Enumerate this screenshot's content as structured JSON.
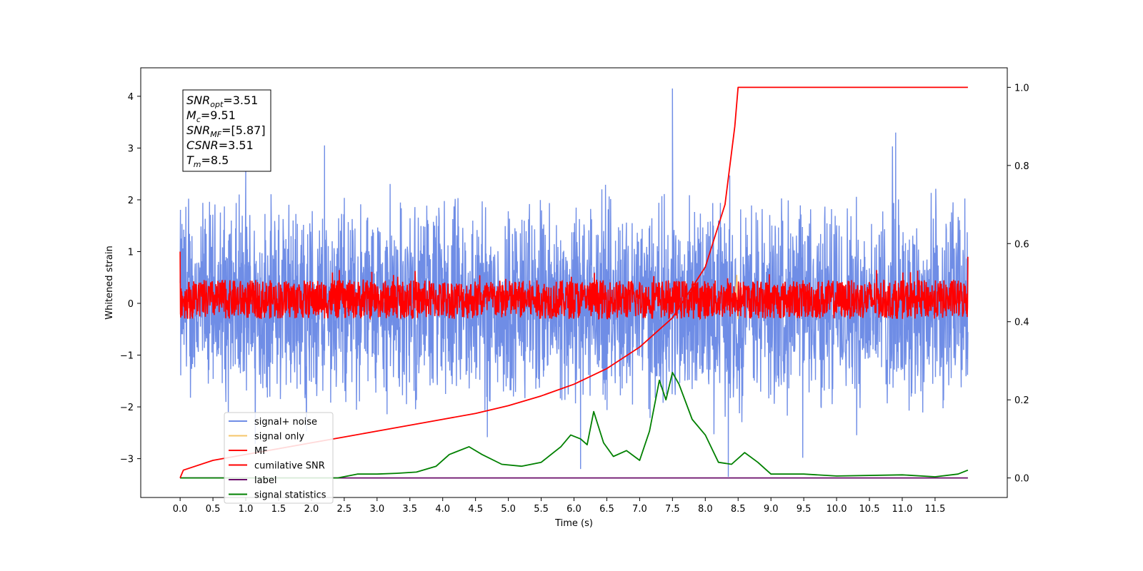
{
  "chart_data": {
    "type": "line",
    "xlabel": "Time (s)",
    "ylabel": "Whitened strain",
    "xlim": [
      -0.6,
      12.6
    ],
    "ylim": [
      -3.75,
      4.55
    ],
    "y2lim": [
      -0.05,
      1.05
    ],
    "xticks": [
      "0.0",
      "0.5",
      "1.0",
      "1.5",
      "2.0",
      "2.5",
      "3.0",
      "3.5",
      "4.0",
      "4.5",
      "5.0",
      "5.5",
      "6.0",
      "6.5",
      "7.0",
      "7.5",
      "8.0",
      "8.5",
      "9.0",
      "9.5",
      "10.0",
      "10.5",
      "11.0",
      "11.5"
    ],
    "yticks": [
      "4",
      "3",
      "2",
      "1",
      "0",
      "−1",
      "−2",
      "−3"
    ],
    "y2ticks": [
      "1.0",
      "0.8",
      "0.6",
      "0.4",
      "0.2",
      "0.0"
    ],
    "annotation": {
      "lines": [
        {
          "sym": "SNR",
          "sub": "opt",
          "val": "=3.51"
        },
        {
          "sym": "M",
          "sub": "c",
          "val": "=9.51"
        },
        {
          "sym": "SNR",
          "sub": "MF",
          "val": "=[5.87]"
        },
        {
          "sym": "CSNR",
          "sub": "",
          "val": "=3.51"
        },
        {
          "sym": "T",
          "sub": "m",
          "val": "=8.5"
        }
      ]
    },
    "series": [
      {
        "name": "signal+ noise",
        "axis": "left",
        "color": "#6f8de6",
        "band": [
          -2.5,
          2.5
        ],
        "spikes": [
          [
            7.5,
            4.15
          ],
          [
            8.35,
            -3.35
          ],
          [
            10.9,
            3.3
          ],
          [
            2.2,
            3.05
          ],
          [
            1.0,
            2.6
          ],
          [
            6.1,
            -3.2
          ]
        ]
      },
      {
        "name": "signal only",
        "axis": "left",
        "color": "#f5c56a",
        "points": [
          [
            8.45,
            0.0
          ],
          [
            8.48,
            0.55
          ],
          [
            8.5,
            -0.3
          ],
          [
            8.52,
            0.0
          ]
        ]
      },
      {
        "name": "MF",
        "axis": "left",
        "color": "#ff0000",
        "band": [
          -0.3,
          0.45
        ],
        "edges": [
          [
            0.0,
            1.0
          ],
          [
            12.0,
            0.9
          ]
        ]
      },
      {
        "name": "cumilative SNR",
        "axis": "right",
        "color": "#ff0000",
        "points": [
          [
            0.0,
            0.0
          ],
          [
            0.05,
            0.02
          ],
          [
            0.5,
            0.045
          ],
          [
            1.0,
            0.06
          ],
          [
            1.5,
            0.075
          ],
          [
            2.0,
            0.09
          ],
          [
            2.5,
            0.105
          ],
          [
            3.0,
            0.12
          ],
          [
            3.5,
            0.135
          ],
          [
            4.0,
            0.15
          ],
          [
            4.5,
            0.165
          ],
          [
            5.0,
            0.185
          ],
          [
            5.5,
            0.21
          ],
          [
            6.0,
            0.24
          ],
          [
            6.5,
            0.28
          ],
          [
            7.0,
            0.335
          ],
          [
            7.5,
            0.41
          ],
          [
            8.0,
            0.54
          ],
          [
            8.3,
            0.7
          ],
          [
            8.45,
            0.9
          ],
          [
            8.5,
            1.0
          ],
          [
            12.0,
            1.0
          ]
        ]
      },
      {
        "name": "label",
        "axis": "right",
        "color": "#6a0d6a",
        "points": [
          [
            0.0,
            0.0
          ],
          [
            12.0,
            0.0
          ]
        ]
      },
      {
        "name": "signal statistics",
        "axis": "right",
        "color": "#008000",
        "points": [
          [
            0.0,
            0.0
          ],
          [
            2.4,
            0.0
          ],
          [
            2.7,
            0.01
          ],
          [
            3.0,
            0.01
          ],
          [
            3.3,
            0.012
          ],
          [
            3.6,
            0.015
          ],
          [
            3.9,
            0.03
          ],
          [
            4.1,
            0.06
          ],
          [
            4.4,
            0.08
          ],
          [
            4.6,
            0.06
          ],
          [
            4.9,
            0.035
          ],
          [
            5.2,
            0.03
          ],
          [
            5.5,
            0.04
          ],
          [
            5.8,
            0.08
          ],
          [
            5.95,
            0.11
          ],
          [
            6.1,
            0.1
          ],
          [
            6.2,
            0.085
          ],
          [
            6.3,
            0.17
          ],
          [
            6.45,
            0.09
          ],
          [
            6.6,
            0.055
          ],
          [
            6.8,
            0.07
          ],
          [
            7.0,
            0.045
          ],
          [
            7.15,
            0.12
          ],
          [
            7.3,
            0.25
          ],
          [
            7.4,
            0.2
          ],
          [
            7.5,
            0.27
          ],
          [
            7.6,
            0.24
          ],
          [
            7.8,
            0.15
          ],
          [
            8.0,
            0.11
          ],
          [
            8.2,
            0.04
          ],
          [
            8.4,
            0.035
          ],
          [
            8.6,
            0.065
          ],
          [
            8.8,
            0.04
          ],
          [
            9.0,
            0.01
          ],
          [
            9.5,
            0.01
          ],
          [
            10.0,
            0.005
          ],
          [
            11.0,
            0.008
          ],
          [
            11.5,
            0.003
          ],
          [
            11.85,
            0.01
          ],
          [
            12.0,
            0.02
          ]
        ]
      }
    ]
  }
}
